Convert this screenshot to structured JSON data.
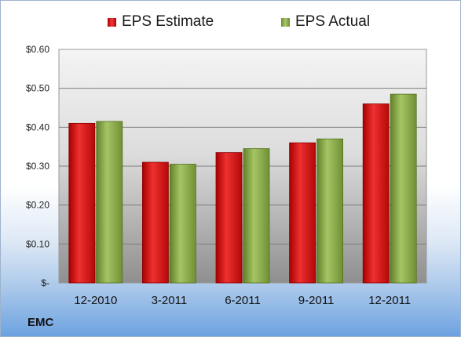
{
  "company": "EMC",
  "chart_data": {
    "type": "bar",
    "categories": [
      "12-2010",
      "3-2011",
      "6-2011",
      "9-2011",
      "12-2011"
    ],
    "series": [
      {
        "name": "EPS Estimate",
        "values": [
          0.41,
          0.31,
          0.335,
          0.36,
          0.46
        ],
        "color": "#d42020"
      },
      {
        "name": "EPS Actual",
        "values": [
          0.415,
          0.305,
          0.345,
          0.37,
          0.485
        ],
        "color": "#8db04a"
      }
    ],
    "yticks": [
      "$-",
      "$0.10",
      "$0.20",
      "$0.30",
      "$0.40",
      "$0.50",
      "$0.60"
    ],
    "ylim": [
      0,
      0.6
    ],
    "grid": true,
    "legend": "top"
  }
}
